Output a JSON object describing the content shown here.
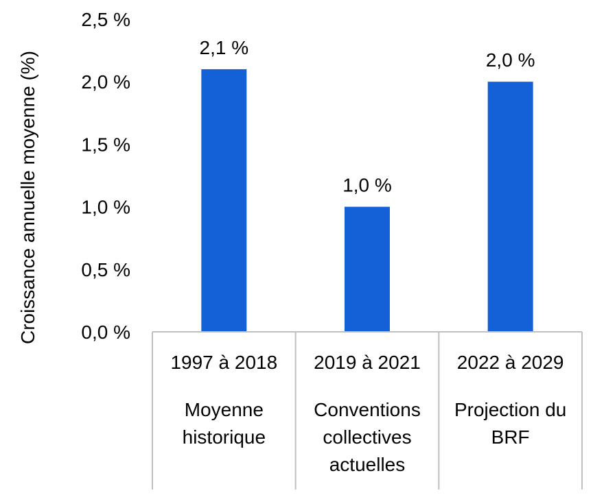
{
  "chart_data": {
    "type": "bar",
    "title": "",
    "xlabel": "",
    "ylabel": "Croissance annuelle moyenne (%)",
    "ylim": [
      0,
      2.5
    ],
    "yticks": [
      {
        "value": 0.0,
        "label": "0,0 %"
      },
      {
        "value": 0.5,
        "label": "0,5 %"
      },
      {
        "value": 1.0,
        "label": "1,0 %"
      },
      {
        "value": 1.5,
        "label": "1,5 %"
      },
      {
        "value": 2.0,
        "label": "2,0 %"
      },
      {
        "value": 2.5,
        "label": "2,5 %"
      }
    ],
    "categories": [
      {
        "period": "1997 à 2018",
        "desc": [
          "Moyenne",
          "historique"
        ]
      },
      {
        "period": "2019 à 2021",
        "desc": [
          "Conventions",
          "collectives",
          "actuelles"
        ]
      },
      {
        "period": "2022 à 2029",
        "desc": [
          "Projection du",
          "BRF"
        ]
      }
    ],
    "values": [
      2.1,
      1.0,
      2.0
    ],
    "value_labels": [
      "2,1 %",
      "1,0 %",
      "2,0 %"
    ],
    "bar_color": "#1460d6",
    "grid": false,
    "legend": "none"
  }
}
